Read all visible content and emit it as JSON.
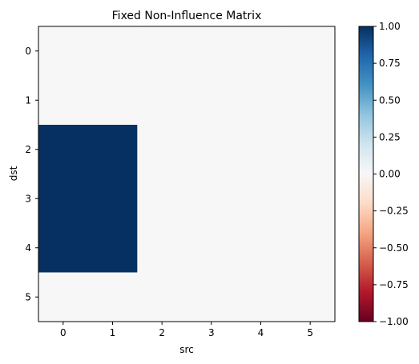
{
  "chart_data": {
    "type": "heatmap",
    "title": "Fixed Non-Influence Matrix",
    "xlabel": "src",
    "ylabel": "dst",
    "x_categories": [
      "0",
      "1",
      "2",
      "3",
      "4",
      "5"
    ],
    "y_categories": [
      "0",
      "1",
      "2",
      "3",
      "4",
      "5"
    ],
    "values": [
      [
        0,
        0,
        0,
        0,
        0,
        0
      ],
      [
        0,
        0,
        0,
        0,
        0,
        0
      ],
      [
        1,
        1,
        0,
        0,
        0,
        0
      ],
      [
        1,
        1,
        0,
        0,
        0,
        0
      ],
      [
        1,
        1,
        0,
        0,
        0,
        0
      ],
      [
        0,
        0,
        0,
        0,
        0,
        0
      ]
    ],
    "colorbar": {
      "vmin": -1.0,
      "vmax": 1.0,
      "ticks": [
        -1.0,
        -0.75,
        -0.5,
        -0.25,
        0.0,
        0.25,
        0.5,
        0.75,
        1.0
      ],
      "tick_labels": [
        "−1.00",
        "−0.75",
        "−0.50",
        "−0.25",
        "0.00",
        "0.25",
        "0.50",
        "0.75",
        "1.00"
      ],
      "colormap": "RdBu"
    },
    "grid": false
  }
}
